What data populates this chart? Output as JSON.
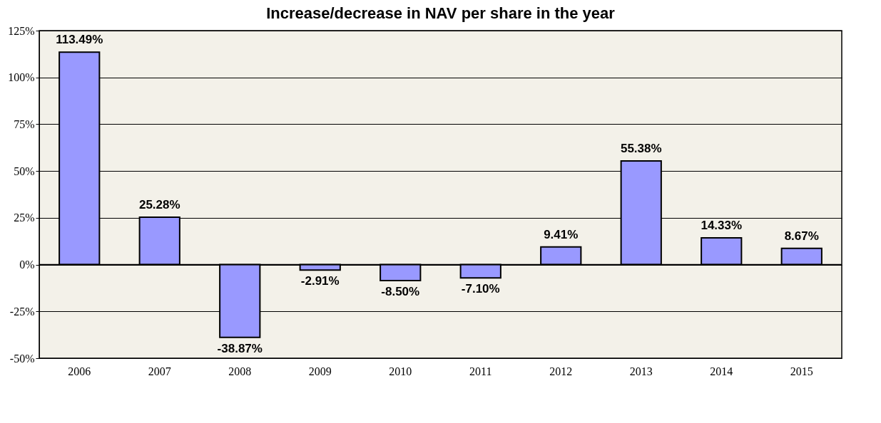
{
  "chart_data": {
    "type": "bar",
    "title": "Increase/decrease in NAV per share in the year",
    "categories": [
      "2006",
      "2007",
      "2008",
      "2009",
      "2010",
      "2011",
      "2012",
      "2013",
      "2014",
      "2015"
    ],
    "values": [
      113.49,
      25.28,
      -38.87,
      -2.91,
      -8.5,
      -7.1,
      9.41,
      55.38,
      14.33,
      8.67
    ],
    "value_labels": [
      "113.49%",
      "25.28%",
      "-38.87%",
      "-2.91%",
      "-8.50%",
      "-7.10%",
      "9.41%",
      "55.38%",
      "14.33%",
      "8.67%"
    ],
    "color": "#9999ff",
    "ylim": [
      -50,
      125
    ],
    "yticks": [
      {
        "value": -50,
        "label": "-50%"
      },
      {
        "value": -25,
        "label": "-25%"
      },
      {
        "value": 0,
        "label": "0%"
      },
      {
        "value": 25,
        "label": "25%"
      },
      {
        "value": 50,
        "label": "50%"
      },
      {
        "value": 75,
        "label": "75%"
      },
      {
        "value": 100,
        "label": "100%"
      },
      {
        "value": 125,
        "label": "125%"
      }
    ],
    "grid": "y"
  }
}
